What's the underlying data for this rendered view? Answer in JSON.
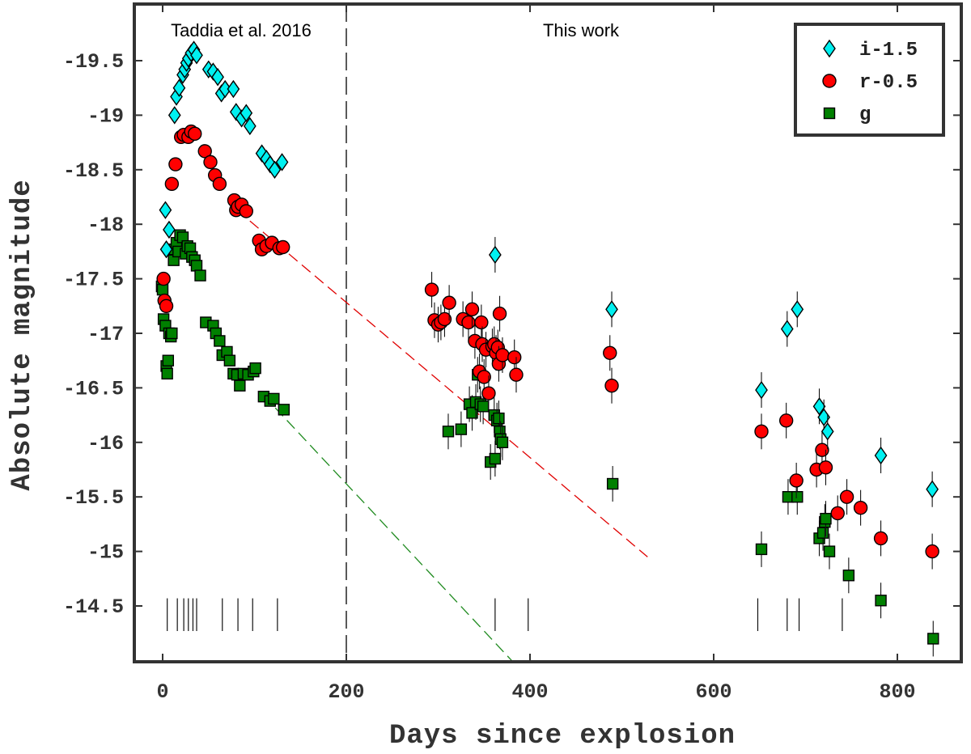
{
  "chart_data": {
    "type": "scatter",
    "title": "",
    "xlabel": "Days since explosion",
    "ylabel": "Absolute magnitude",
    "xlim": [
      -28,
      862
    ],
    "ylim": [
      -14.0,
      -20.0
    ],
    "y_inverted": true,
    "xticks": [
      0,
      200,
      400,
      600,
      800
    ],
    "xtick_labels": [
      "0",
      "200",
      "400",
      "600",
      "800"
    ],
    "yticks": [
      -19.5,
      -19,
      -18.5,
      -18,
      -17.5,
      -17,
      -16.5,
      -16,
      -15.5,
      -15,
      -14.5
    ],
    "ytick_labels": [
      "-19.5",
      "-19",
      "-18.5",
      "-18",
      "-17.5",
      "-17",
      "-16.5",
      "-16",
      "-15.5",
      "-15",
      "-14.5"
    ],
    "region_labels": {
      "left": "Taddia et al. 2016",
      "right": "This work"
    },
    "divider_x": 200,
    "legend_position": "top-right",
    "colors": {
      "i": "#00f0f0",
      "r": "#ff0000",
      "g": "#008000",
      "r_line": "#e00000",
      "g_line": "#1e8a1e",
      "edge": "#000000"
    },
    "series": [
      {
        "name": "i-1.5",
        "band": "i",
        "marker": "diamond",
        "points": [
          {
            "x": 3,
            "y": -18.13
          },
          {
            "x": 4,
            "y": -17.77
          },
          {
            "x": 7,
            "y": -17.95
          },
          {
            "x": 13,
            "y": -19.0
          },
          {
            "x": 15,
            "y": -19.17
          },
          {
            "x": 18,
            "y": -19.25
          },
          {
            "x": 22,
            "y": -19.37
          },
          {
            "x": 24,
            "y": -19.42
          },
          {
            "x": 26,
            "y": -19.48
          },
          {
            "x": 28,
            "y": -19.52
          },
          {
            "x": 31,
            "y": -19.57
          },
          {
            "x": 34,
            "y": -19.6
          },
          {
            "x": 37,
            "y": -19.55
          },
          {
            "x": 50,
            "y": -19.42
          },
          {
            "x": 55,
            "y": -19.4
          },
          {
            "x": 60,
            "y": -19.35
          },
          {
            "x": 64,
            "y": -19.2
          },
          {
            "x": 68,
            "y": -19.24
          },
          {
            "x": 77,
            "y": -19.24
          },
          {
            "x": 80,
            "y": -19.03
          },
          {
            "x": 86,
            "y": -18.97
          },
          {
            "x": 91,
            "y": -19.02
          },
          {
            "x": 95,
            "y": -18.9
          },
          {
            "x": 108,
            "y": -18.65
          },
          {
            "x": 113,
            "y": -18.6
          },
          {
            "x": 117,
            "y": -18.55
          },
          {
            "x": 122,
            "y": -18.5
          },
          {
            "x": 130,
            "y": -18.57
          },
          {
            "x": 362,
            "y": -17.72
          },
          {
            "x": 489,
            "y": -17.22
          },
          {
            "x": 652,
            "y": -16.48
          },
          {
            "x": 680,
            "y": -17.04
          },
          {
            "x": 691,
            "y": -17.22
          },
          {
            "x": 715,
            "y": -16.33
          },
          {
            "x": 720,
            "y": -16.23
          },
          {
            "x": 724,
            "y": -16.1
          },
          {
            "x": 782,
            "y": -15.88
          },
          {
            "x": 838,
            "y": -15.57
          }
        ]
      },
      {
        "name": "r-0.5",
        "band": "r",
        "marker": "circle",
        "points": [
          {
            "x": 1,
            "y": -17.5
          },
          {
            "x": 2,
            "y": -17.3
          },
          {
            "x": 4,
            "y": -17.25
          },
          {
            "x": 10,
            "y": -18.37
          },
          {
            "x": 14,
            "y": -18.55
          },
          {
            "x": 20,
            "y": -18.8
          },
          {
            "x": 23,
            "y": -18.82
          },
          {
            "x": 28,
            "y": -18.8
          },
          {
            "x": 31,
            "y": -18.85
          },
          {
            "x": 35,
            "y": -18.83
          },
          {
            "x": 46,
            "y": -18.67
          },
          {
            "x": 52,
            "y": -18.57
          },
          {
            "x": 57,
            "y": -18.45
          },
          {
            "x": 62,
            "y": -18.37
          },
          {
            "x": 78,
            "y": -18.22
          },
          {
            "x": 80,
            "y": -18.13
          },
          {
            "x": 82,
            "y": -18.16
          },
          {
            "x": 86,
            "y": -18.18
          },
          {
            "x": 91,
            "y": -18.12
          },
          {
            "x": 105,
            "y": -17.85
          },
          {
            "x": 108,
            "y": -17.77
          },
          {
            "x": 113,
            "y": -17.8
          },
          {
            "x": 119,
            "y": -17.83
          },
          {
            "x": 127,
            "y": -17.78
          },
          {
            "x": 131,
            "y": -17.79
          },
          {
            "x": 293,
            "y": -17.4
          },
          {
            "x": 296,
            "y": -17.12
          },
          {
            "x": 300,
            "y": -17.08
          },
          {
            "x": 303,
            "y": -17.1
          },
          {
            "x": 307,
            "y": -17.13
          },
          {
            "x": 312,
            "y": -17.28
          },
          {
            "x": 327,
            "y": -17.13
          },
          {
            "x": 333,
            "y": -17.1
          },
          {
            "x": 337,
            "y": -17.22
          },
          {
            "x": 340,
            "y": -16.93
          },
          {
            "x": 345,
            "y": -16.65
          },
          {
            "x": 347,
            "y": -17.1
          },
          {
            "x": 348,
            "y": -16.9
          },
          {
            "x": 350,
            "y": -16.6
          },
          {
            "x": 352,
            "y": -16.85
          },
          {
            "x": 355,
            "y": -16.45
          },
          {
            "x": 359,
            "y": -16.88
          },
          {
            "x": 361,
            "y": -16.9
          },
          {
            "x": 363,
            "y": -16.82
          },
          {
            "x": 365,
            "y": -16.87
          },
          {
            "x": 366,
            "y": -16.72
          },
          {
            "x": 367,
            "y": -17.18
          },
          {
            "x": 370,
            "y": -16.8
          },
          {
            "x": 383,
            "y": -16.78
          },
          {
            "x": 385,
            "y": -16.62
          },
          {
            "x": 487,
            "y": -16.82
          },
          {
            "x": 489,
            "y": -16.52
          },
          {
            "x": 652,
            "y": -16.1
          },
          {
            "x": 679,
            "y": -16.2
          },
          {
            "x": 690,
            "y": -15.65
          },
          {
            "x": 712,
            "y": -15.75
          },
          {
            "x": 718,
            "y": -15.93
          },
          {
            "x": 722,
            "y": -15.77
          },
          {
            "x": 735,
            "y": -15.35
          },
          {
            "x": 745,
            "y": -15.5
          },
          {
            "x": 760,
            "y": -15.4
          },
          {
            "x": 782,
            "y": -15.12
          },
          {
            "x": 838,
            "y": -15.0
          }
        ]
      },
      {
        "name": "g",
        "band": "g",
        "marker": "square",
        "points": [
          {
            "x": -1,
            "y": -17.43
          },
          {
            "x": 0,
            "y": -17.4
          },
          {
            "x": 1,
            "y": -17.13
          },
          {
            "x": 3,
            "y": -17.07
          },
          {
            "x": 4,
            "y": -16.7
          },
          {
            "x": 5,
            "y": -16.63
          },
          {
            "x": 6,
            "y": -16.75
          },
          {
            "x": 7,
            "y": -17.0
          },
          {
            "x": 9,
            "y": -16.97
          },
          {
            "x": 10,
            "y": -17.0
          },
          {
            "x": 12,
            "y": -17.67
          },
          {
            "x": 13,
            "y": -17.77
          },
          {
            "x": 15,
            "y": -17.83
          },
          {
            "x": 17,
            "y": -17.75
          },
          {
            "x": 19,
            "y": -17.9
          },
          {
            "x": 22,
            "y": -17.88
          },
          {
            "x": 25,
            "y": -17.73
          },
          {
            "x": 27,
            "y": -17.8
          },
          {
            "x": 30,
            "y": -17.78
          },
          {
            "x": 32,
            "y": -17.7
          },
          {
            "x": 35,
            "y": -17.67
          },
          {
            "x": 37,
            "y": -17.62
          },
          {
            "x": 41,
            "y": -17.53
          },
          {
            "x": 47,
            "y": -17.1
          },
          {
            "x": 55,
            "y": -17.07
          },
          {
            "x": 58,
            "y": -17.0
          },
          {
            "x": 62,
            "y": -16.93
          },
          {
            "x": 65,
            "y": -16.8
          },
          {
            "x": 70,
            "y": -16.83
          },
          {
            "x": 73,
            "y": -16.75
          },
          {
            "x": 77,
            "y": -16.63
          },
          {
            "x": 81,
            "y": -16.62
          },
          {
            "x": 84,
            "y": -16.52
          },
          {
            "x": 88,
            "y": -16.63
          },
          {
            "x": 93,
            "y": -16.62
          },
          {
            "x": 99,
            "y": -16.65
          },
          {
            "x": 101,
            "y": -16.68
          },
          {
            "x": 110,
            "y": -16.42
          },
          {
            "x": 117,
            "y": -16.38
          },
          {
            "x": 121,
            "y": -16.4
          },
          {
            "x": 132,
            "y": -16.3
          },
          {
            "x": 311,
            "y": -16.1
          },
          {
            "x": 325,
            "y": -16.12
          },
          {
            "x": 334,
            "y": -16.35
          },
          {
            "x": 337,
            "y": -16.27
          },
          {
            "x": 341,
            "y": -16.37
          },
          {
            "x": 343,
            "y": -16.62
          },
          {
            "x": 346,
            "y": -16.35
          },
          {
            "x": 349,
            "y": -16.33
          },
          {
            "x": 357,
            "y": -15.82
          },
          {
            "x": 361,
            "y": -16.25
          },
          {
            "x": 362,
            "y": -15.85
          },
          {
            "x": 364,
            "y": -16.2
          },
          {
            "x": 366,
            "y": -16.22
          },
          {
            "x": 367,
            "y": -16.1
          },
          {
            "x": 368,
            "y": -16.03
          },
          {
            "x": 370,
            "y": -16.0
          },
          {
            "x": 490,
            "y": -15.62
          },
          {
            "x": 652,
            "y": -15.02
          },
          {
            "x": 681,
            "y": -15.5
          },
          {
            "x": 691,
            "y": -15.5
          },
          {
            "x": 715,
            "y": -15.12
          },
          {
            "x": 719,
            "y": -15.17
          },
          {
            "x": 721,
            "y": -15.27
          },
          {
            "x": 722,
            "y": -15.3
          },
          {
            "x": 726,
            "y": -15.0
          },
          {
            "x": 747,
            "y": -14.78
          },
          {
            "x": 782,
            "y": -14.55
          },
          {
            "x": 839,
            "y": -14.2
          }
        ]
      }
    ],
    "fit_lines": [
      {
        "band": "r",
        "x": [
          95,
          528
        ],
        "y": [
          -18.03,
          -14.95
        ]
      },
      {
        "band": "g",
        "x": [
          110,
          380
        ],
        "y": [
          -16.43,
          -14.0
        ]
      }
    ],
    "epoch_markers_x": [
      5,
      16,
      23,
      28,
      33,
      37,
      65,
      82,
      98,
      125,
      362,
      398,
      648,
      680,
      693,
      740
    ],
    "legend": [
      {
        "label": "i-1.5",
        "band": "i",
        "marker": "diamond"
      },
      {
        "label": "r-0.5",
        "band": "r",
        "marker": "circle"
      },
      {
        "label": "g",
        "band": "g",
        "marker": "square"
      }
    ]
  }
}
